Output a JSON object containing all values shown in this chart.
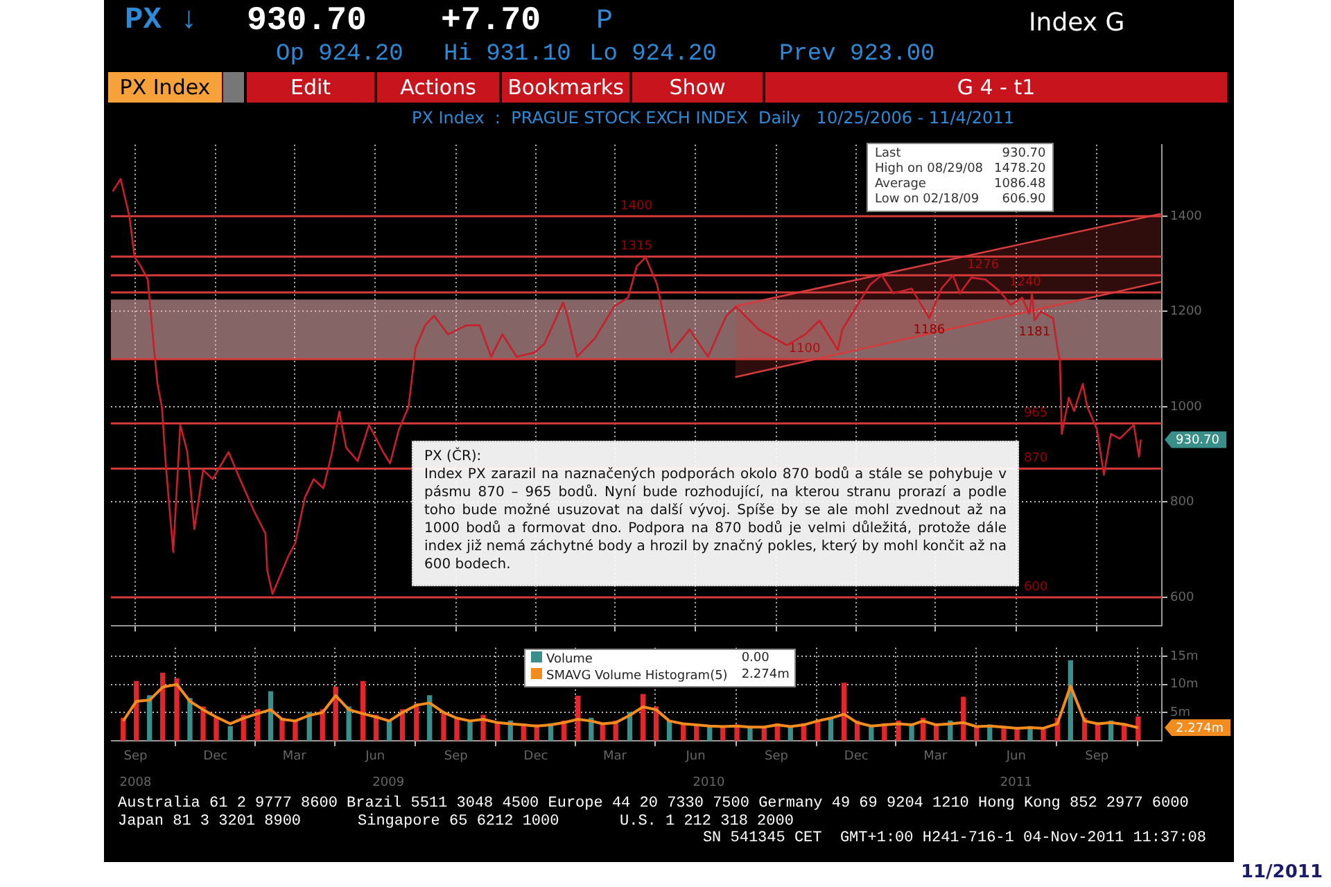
{
  "chart_data": [
    {
      "type": "line",
      "title": "PX Index  :  PRAGUE STOCK EXCH INDEX",
      "subtitle": "Daily   10/25/2006 - 11/4/2011",
      "xlim": [
        "2008-08-18",
        "2011-11-28"
      ],
      "ylim": [
        540,
        1550
      ],
      "yticks": [
        600,
        800,
        1000,
        1200,
        1400
      ],
      "xticks": [
        {
          "value": "2008-09-15",
          "label": null
        },
        {
          "value": "2008-12-15",
          "label": null
        },
        {
          "value": "2009-03-15",
          "label": null
        },
        {
          "value": "2009-06-15",
          "label": null
        },
        {
          "value": "2009-09-15",
          "label": null
        },
        {
          "value": "2009-12-15",
          "label": null
        },
        {
          "value": "2010-03-15",
          "label": null
        },
        {
          "value": "2010-06-15",
          "label": null
        },
        {
          "value": "2010-09-15",
          "label": null
        },
        {
          "value": "2010-12-15",
          "label": null
        },
        {
          "value": "2011-03-15",
          "label": null
        },
        {
          "value": "2011-06-15",
          "label": null
        },
        {
          "value": "2011-09-15",
          "label": null
        }
      ],
      "tick_labels": "y",
      "grid": true,
      "series": [
        {
          "color": "#c8202a",
          "x": [
            "2008-08-20",
            "2008-08-29",
            "2008-09-08",
            "2008-09-14",
            "2008-09-21",
            "2008-09-29",
            "2008-10-05",
            "2008-10-10",
            "2008-10-15",
            "2008-10-20",
            "2008-10-28",
            "2008-11-05",
            "2008-11-13",
            "2008-11-21",
            "2008-12-01",
            "2008-12-12",
            "2008-12-30",
            "2009-01-12",
            "2009-01-28",
            "2009-02-10",
            "2009-02-12",
            "2009-02-18",
            "2009-03-08",
            "2009-03-16",
            "2009-03-27",
            "2009-04-06",
            "2009-04-17",
            "2009-04-27",
            "2009-05-05",
            "2009-05-13",
            "2009-05-26",
            "2009-06-08",
            "2009-06-24",
            "2009-07-02",
            "2009-07-12",
            "2009-07-23",
            "2009-07-31",
            "2009-08-11",
            "2009-08-21",
            "2009-09-06",
            "2009-09-27",
            "2009-10-12",
            "2009-10-25",
            "2009-11-07",
            "2009-11-23",
            "2009-12-14",
            "2009-12-25",
            "2010-01-15",
            "2010-01-20",
            "2010-01-31",
            "2010-02-20",
            "2010-03-14",
            "2010-03-30",
            "2010-04-09",
            "2010-04-19",
            "2010-05-02",
            "2010-05-18",
            "2010-06-08",
            "2010-06-29",
            "2010-07-20",
            "2010-07-31",
            "2010-08-26",
            "2010-09-27",
            "2010-10-18",
            "2010-11-03",
            "2010-11-24",
            "2010-11-29",
            "2010-12-15",
            "2010-12-31",
            "2011-01-13",
            "2011-01-26",
            "2011-02-16",
            "2011-03-08",
            "2011-03-22",
            "2011-04-04",
            "2011-04-12",
            "2011-04-25",
            "2011-05-11",
            "2011-05-27",
            "2011-06-09",
            "2011-06-22",
            "2011-06-30",
            "2011-07-03",
            "2011-07-06",
            "2011-07-13",
            "2011-07-27",
            "2011-08-01",
            "2011-08-04",
            "2011-08-06",
            "2011-08-14",
            "2011-08-20",
            "2011-08-30",
            "2011-09-04",
            "2011-09-15",
            "2011-09-23",
            "2011-10-01",
            "2011-10-11",
            "2011-10-27",
            "2011-11-02",
            "2011-11-04"
          ],
          "values": [
            1452,
            1478,
            1400,
            1314,
            1295,
            1267,
            1143,
            1048,
            1000,
            867,
            695,
            962,
            905,
            743,
            867,
            848,
            905,
            848,
            781,
            734,
            657,
            607,
            686,
            714,
            810,
            848,
            829,
            905,
            990,
            914,
            886,
            962,
            905,
            881,
            952,
            1000,
            1124,
            1171,
            1191,
            1152,
            1171,
            1171,
            1105,
            1152,
            1105,
            1114,
            1133,
            1219,
            1190,
            1105,
            1143,
            1210,
            1229,
            1295,
            1314,
            1257,
            1114,
            1162,
            1105,
            1191,
            1210,
            1162,
            1129,
            1152,
            1181,
            1119,
            1162,
            1210,
            1257,
            1276,
            1238,
            1248,
            1186,
            1248,
            1276,
            1238,
            1271,
            1267,
            1243,
            1214,
            1229,
            1195,
            1238,
            1181,
            1200,
            1186,
            1124,
            1095,
            943,
            1019,
            991,
            1048,
            1000,
            953,
            857,
            943,
            933,
            962,
            895,
            931
          ]
        },
        {
          "type": "line",
          "color": "#d43b3b",
          "x": [
            "2010-07-30",
            "2011-11-27"
          ],
          "values": [
            1211,
            1405
          ],
          "lower": [
            1062,
            1262
          ],
          "upper": [
            1211,
            1405
          ]
        },
        {
          "type": "line",
          "color": "#d43b3b",
          "x": [
            "2010-07-30",
            "2011-11-27"
          ],
          "values": [
            1062,
            1262
          ]
        }
      ],
      "bands": [
        {
          "axis": "y",
          "from": 1100,
          "to": 1225,
          "color": "#f3b8b8"
        }
      ],
      "ref_lines": [
        {
          "axis": "y",
          "value": 1400,
          "label": "1400",
          "color": "#d43b3b"
        },
        {
          "axis": "y",
          "value": 1315,
          "label": "1315",
          "color": "#d43b3b"
        },
        {
          "axis": "y",
          "value": 1276,
          "label": "1276",
          "color": "#d43b3b"
        },
        {
          "axis": "y",
          "value": 1240,
          "label": "1240",
          "color": "#d43b3b"
        },
        {
          "axis": "y",
          "value": 1100,
          "label": "1100",
          "color": "#d43b3b"
        },
        {
          "axis": "y",
          "value": 965,
          "label": "965",
          "color": "#d43b3b"
        },
        {
          "axis": "y",
          "value": 870,
          "label": "870",
          "color": "#d43b3b"
        },
        {
          "axis": "y",
          "value": 600,
          "label": "600",
          "color": "#d43b3b"
        }
      ],
      "annotations": [
        "PX ↓",
        "930.70",
        "+7.70",
        "P",
        "Index G",
        "Op 924.20",
        "Hi 931.10",
        "Lo 924.20",
        "Prev 923.00",
        "PX Index",
        "Edit",
        "Actions",
        "Bookmarks",
        "Show",
        "G 4 - t1",
        "Last",
        "930.70",
        "High on 08/29/08",
        "1478.20",
        "Average",
        "1086.48",
        "Low on 02/18/09",
        "606.90",
        "PX (ČR):",
        "Index PX zarazil na naznačených podporách okolo 870 bodů a stále se pohybuje v pásmu 870 – 965 bodů. Nyní bude rozhodující, na kterou stranu prorazí a podle toho bude možné usuzovat na další vývoj. Spíše by se ale mohl zvednout až na 1000 bodů a formovat dno. Podpora na 870 bodů je velmi důležitá, protože dále index již nemá záchytné body a hrozil by značný pokles, který by mohl končit až na 600 bodech.",
        {
          "text": "1186",
          "x": "2011-03-08",
          "y": 1186
        },
        {
          "text": "1181",
          "x": "2011-07-06",
          "y": 1181
        },
        "930.70"
      ]
    },
    {
      "type": "bar",
      "xlim": [
        "2008-08-18",
        "2011-11-28"
      ],
      "ylim": [
        0,
        16.5
      ],
      "yticks": [
        {
          "value": 5,
          "label": "5m"
        },
        {
          "value": 10,
          "label": "10m"
        },
        {
          "value": 15,
          "label": "15m"
        }
      ],
      "xticks": [
        {
          "value": "2008-09-15",
          "label": "Sep"
        },
        {
          "value": "2008-12-15",
          "label": "Dec"
        },
        {
          "value": "2009-03-15",
          "label": "Mar"
        },
        {
          "value": "2009-06-15",
          "label": "Jun"
        },
        {
          "value": "2009-09-15",
          "label": "Sep"
        },
        {
          "value": "2009-12-15",
          "label": "Dec"
        },
        {
          "value": "2010-03-15",
          "label": "Mar"
        },
        {
          "value": "2010-06-15",
          "label": "Jun"
        },
        {
          "value": "2010-09-15",
          "label": "Sep"
        },
        {
          "value": "2010-12-15",
          "label": "Dec"
        },
        {
          "value": "2011-03-15",
          "label": "Mar"
        },
        {
          "value": "2011-06-15",
          "label": "Jun"
        },
        {
          "value": "2011-09-15",
          "label": "Sep"
        }
      ],
      "x2lim": [
        "2008-08-18",
        "2011-11-28"
      ],
      "x2ticks": [
        {
          "value": "2008-09-15",
          "label": "2008"
        },
        {
          "value": "2009-06-30",
          "label": "2009"
        },
        {
          "value": "2010-06-30",
          "label": "2010"
        },
        {
          "value": "2011-06-15",
          "label": "2011"
        }
      ],
      "grid": true,
      "legend": "top",
      "x": [
        "2008-09-01",
        "2008-09-16",
        "2008-10-01",
        "2008-10-16",
        "2008-11-01",
        "2008-11-16",
        "2008-12-01",
        "2008-12-16",
        "2009-01-01",
        "2009-01-16",
        "2009-02-01",
        "2009-02-16",
        "2009-03-01",
        "2009-03-16",
        "2009-04-01",
        "2009-04-16",
        "2009-05-01",
        "2009-05-16",
        "2009-06-01",
        "2009-06-16",
        "2009-07-01",
        "2009-07-16",
        "2009-08-01",
        "2009-08-16",
        "2009-09-01",
        "2009-09-16",
        "2009-10-01",
        "2009-10-16",
        "2009-11-01",
        "2009-11-16",
        "2009-12-01",
        "2009-12-16",
        "2010-01-01",
        "2010-01-16",
        "2010-02-01",
        "2010-02-16",
        "2010-03-01",
        "2010-03-16",
        "2010-04-01",
        "2010-04-16",
        "2010-05-01",
        "2010-05-16",
        "2010-06-01",
        "2010-06-16",
        "2010-07-01",
        "2010-07-16",
        "2010-08-01",
        "2010-08-16",
        "2010-09-01",
        "2010-09-16",
        "2010-10-01",
        "2010-10-16",
        "2010-11-01",
        "2010-11-16",
        "2010-12-01",
        "2010-12-16",
        "2011-01-01",
        "2011-01-16",
        "2011-02-01",
        "2011-02-16",
        "2011-03-01",
        "2011-03-16",
        "2011-04-01",
        "2011-04-16",
        "2011-05-01",
        "2011-05-16",
        "2011-06-01",
        "2011-06-16",
        "2011-07-01",
        "2011-07-16",
        "2011-08-01",
        "2011-08-16",
        "2011-09-01",
        "2011-09-16",
        "2011-10-01",
        "2011-10-16",
        "2011-11-01"
      ],
      "series": [
        {
          "name": "Volume",
          "color": "#3a8f8a",
          "colors": [
            "#e3262b",
            "#e3262b",
            "#3a8f8a",
            "#e3262b",
            "#e3262b",
            "#3a8f8a",
            "#e3262b",
            "#e3262b",
            "#3a8f8a",
            "#e3262b",
            "#e3262b",
            "#3a8f8a",
            "#e3262b",
            "#e3262b",
            "#3a8f8a",
            "#e3262b",
            "#e3262b",
            "#3a8f8a",
            "#e3262b",
            "#e3262b",
            "#3a8f8a",
            "#e3262b",
            "#e3262b",
            "#3a8f8a",
            "#e3262b",
            "#e3262b",
            "#3a8f8a",
            "#e3262b",
            "#e3262b",
            "#3a8f8a",
            "#e3262b",
            "#e3262b",
            "#3a8f8a",
            "#e3262b",
            "#e3262b",
            "#3a8f8a",
            "#e3262b",
            "#e3262b",
            "#3a8f8a",
            "#e3262b",
            "#e3262b",
            "#3a8f8a",
            "#e3262b",
            "#e3262b",
            "#3a8f8a",
            "#e3262b",
            "#e3262b",
            "#3a8f8a",
            "#e3262b",
            "#e3262b",
            "#3a8f8a",
            "#e3262b",
            "#e3262b",
            "#3a8f8a",
            "#e3262b",
            "#e3262b",
            "#3a8f8a",
            "#e3262b",
            "#e3262b",
            "#3a8f8a",
            "#e3262b",
            "#e3262b",
            "#3a8f8a",
            "#e3262b",
            "#e3262b",
            "#3a8f8a",
            "#e3262b",
            "#e3262b",
            "#3a8f8a",
            "#e3262b",
            "#e3262b",
            "#3a8f8a",
            "#e3262b",
            "#e3262b",
            "#3a8f8a",
            "#e3262b",
            "#e3262b"
          ],
          "values": [
            4.0,
            10.5,
            8.0,
            12.0,
            11.0,
            7.5,
            6.0,
            4.0,
            2.5,
            4.5,
            5.5,
            8.7,
            4.0,
            3.5,
            5.0,
            5.5,
            9.5,
            6.0,
            10.5,
            4.5,
            3.5,
            5.5,
            6.5,
            8.0,
            5.0,
            4.0,
            3.5,
            4.5,
            3.0,
            3.5,
            2.5,
            2.8,
            3.0,
            3.5,
            7.9,
            4.0,
            3.0,
            3.5,
            5.0,
            8.2,
            6.0,
            3.5,
            3.0,
            2.8,
            2.5,
            2.5,
            2.8,
            2.5,
            2.5,
            3.0,
            2.5,
            3.0,
            3.5,
            4.0,
            10.2,
            3.5,
            2.5,
            3.0,
            3.5,
            3.0,
            4.0,
            3.0,
            3.5,
            7.7,
            2.5,
            2.8,
            2.5,
            2.0,
            2.5,
            2.0,
            4.0,
            14.2,
            4.0,
            3.0,
            3.5,
            3.0,
            4.2
          ]
        },
        {
          "name": "SMAVG Volume Histogram(5)",
          "type": "line",
          "color": "#f28c1e",
          "values": [
            3.5,
            7.0,
            7.2,
            9.5,
            10.0,
            7.0,
            5.5,
            4.2,
            3.0,
            4.0,
            4.8,
            5.5,
            3.8,
            3.5,
            4.5,
            5.0,
            8.0,
            5.5,
            4.8,
            4.2,
            3.5,
            5.0,
            6.3,
            6.7,
            5.0,
            4.0,
            3.5,
            3.8,
            3.2,
            3.0,
            2.8,
            2.6,
            2.8,
            3.2,
            3.8,
            3.5,
            3.0,
            3.2,
            4.5,
            6.0,
            5.5,
            3.5,
            3.0,
            2.8,
            2.6,
            2.5,
            2.6,
            2.4,
            2.4,
            2.8,
            2.5,
            2.8,
            3.5,
            4.0,
            4.7,
            3.2,
            2.6,
            2.8,
            3.0,
            2.8,
            3.5,
            2.8,
            3.0,
            3.2,
            2.5,
            2.6,
            2.4,
            2.2,
            2.3,
            2.2,
            3.0,
            9.7,
            3.5,
            3.0,
            3.2,
            2.9,
            2.3
          ]
        }
      ],
      "annotations": [
        "0.00",
        "2.274m",
        "Australia 61 2 9777 8600 Brazil 5511 3048 4500 Europe 44 20 7330 7500 Germany 49 69 9204 1210 Hong Kong 852 2977 6000",
        "Japan 81 3 3201 8900",
        "Singapore 65 6212 1000",
        "U.S. 1 212 318 2000",
        "SN 541345 CET  GMT+1:00 H241-716-1 04-Nov-2011 11:37:08",
        "11/2011",
        "2.274m"
      ]
    }
  ]
}
